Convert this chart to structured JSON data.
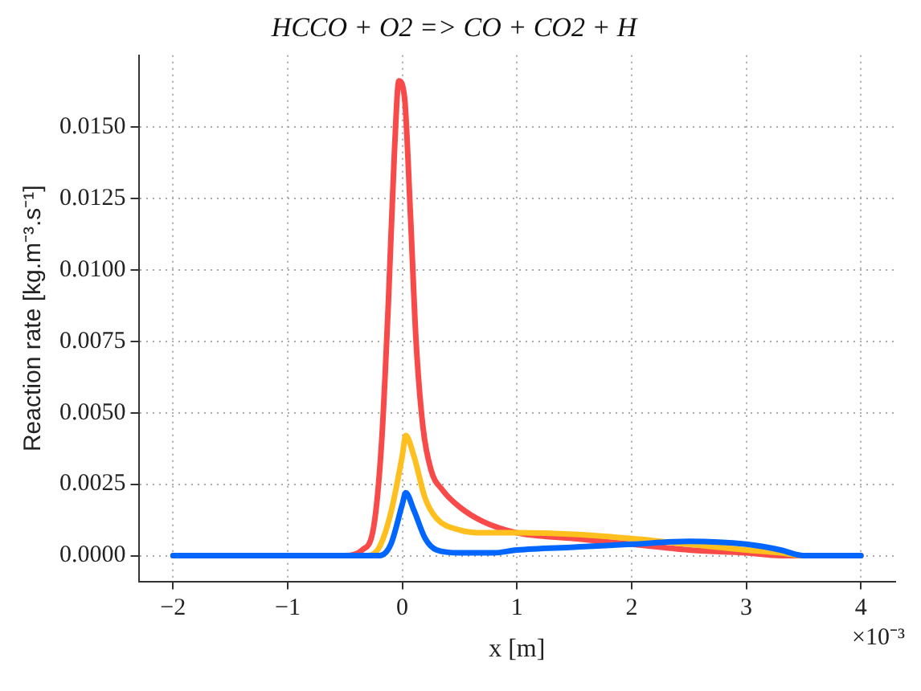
{
  "chart_data": {
    "type": "line",
    "title": "HCCO + O2 => CO + CO2 + H",
    "xlabel": "x [m]",
    "ylabel": "Reaction rate [kg.m⁻³.s⁻¹]",
    "annotations": [
      "×10⁻³"
    ],
    "xlim": [
      -2.3,
      4.3
    ],
    "ylim": [
      -0.0009,
      0.0175
    ],
    "xticks": [
      {
        "value": -2,
        "label": "−2"
      },
      {
        "value": -1,
        "label": "−1"
      },
      0,
      1,
      2,
      3,
      4
    ],
    "yticks": [
      {
        "value": 0,
        "label": "0.0000"
      },
      {
        "value": 0.0025,
        "label": "0.0025"
      },
      {
        "value": 0.005,
        "label": "0.0050"
      },
      {
        "value": 0.0075,
        "label": "0.0075"
      },
      {
        "value": 0.01,
        "label": "0.0100"
      },
      {
        "value": 0.0125,
        "label": "0.0125"
      },
      {
        "value": 0.015,
        "label": "0.0150"
      }
    ],
    "grid": true,
    "series": [
      {
        "color": "#0066ff",
        "x": [
          -2,
          -0.5,
          -0.2,
          -0.1,
          0,
          0.03,
          0.1,
          0.2,
          0.3,
          0.5,
          0.8,
          1.0,
          1.5,
          2.0,
          2.5,
          3.0,
          3.3,
          3.5,
          4
        ],
        "values": [
          0,
          0,
          0,
          0.0004,
          0.0018,
          0.0022,
          0.0016,
          0.0006,
          0.0002,
          0.0001,
          0.0001,
          0.0002,
          0.0003,
          0.0004,
          0.0005,
          0.0004,
          0.0002,
          0,
          0
        ]
      },
      {
        "color": "#ffbf1f",
        "x": [
          -2,
          -0.5,
          -0.3,
          -0.2,
          -0.1,
          0,
          0.03,
          0.1,
          0.2,
          0.3,
          0.5,
          0.7,
          1.0,
          1.5,
          2.0,
          2.5,
          3.0,
          3.3,
          3.5,
          4
        ],
        "values": [
          0,
          0,
          0,
          0.0003,
          0.0015,
          0.0035,
          0.0042,
          0.0035,
          0.002,
          0.0013,
          0.0009,
          0.0008,
          0.0008,
          0.00075,
          0.0006,
          0.0004,
          0.0002,
          0.0001,
          0,
          0
        ]
      },
      {
        "color": "#f94a4a",
        "x": [
          -2,
          -0.5,
          -0.35,
          -0.25,
          -0.18,
          -0.12,
          -0.07,
          -0.03,
          0.02,
          0.07,
          0.12,
          0.18,
          0.25,
          0.35,
          0.5,
          0.7,
          1.0,
          1.5,
          2.0,
          2.5,
          3.0,
          3.3,
          4
        ],
        "values": [
          0,
          0,
          0.0002,
          0.001,
          0.004,
          0.009,
          0.014,
          0.0166,
          0.016,
          0.012,
          0.0075,
          0.0045,
          0.003,
          0.0023,
          0.0017,
          0.0012,
          0.0008,
          0.0006,
          0.0004,
          0.0002,
          0.0001,
          0,
          0
        ]
      }
    ]
  }
}
